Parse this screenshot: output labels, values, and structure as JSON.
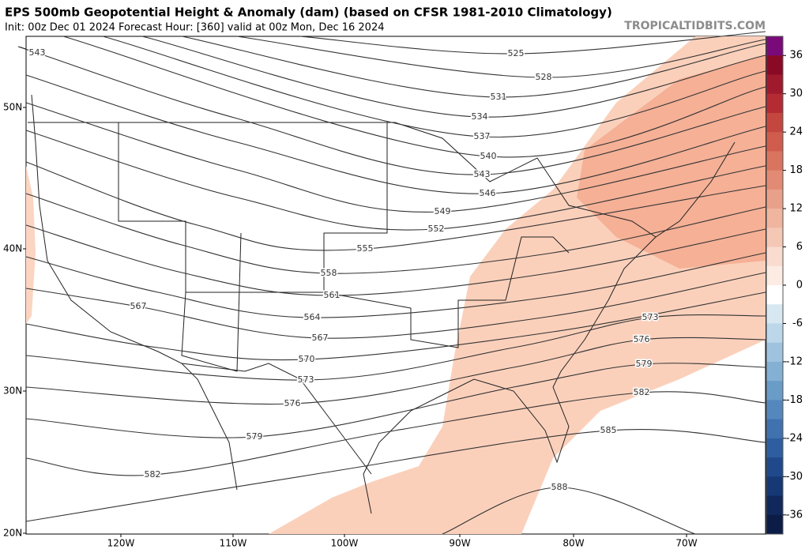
{
  "header": {
    "title": "EPS 500mb Geopotential Height & Anomaly (dam) (based on CFSR 1981-2010 Climatology)",
    "subtitle": "Init: 00z Dec 01 2024   Forecast Hour: [360]   valid at 00z Mon, Dec 16 2024",
    "watermark": "TROPICALTIDBITS.COM"
  },
  "contours": {
    "labels": [
      "543",
      "525",
      "528",
      "531",
      "534",
      "537",
      "540",
      "543",
      "546",
      "549",
      "552",
      "555",
      "558",
      "561",
      "564",
      "567",
      "567",
      "570",
      "573",
      "573",
      "576",
      "576",
      "579",
      "579",
      "582",
      "582",
      "585",
      "588"
    ]
  },
  "latitudes": [
    "50N",
    "40N",
    "30N",
    "20N"
  ],
  "longitudes": [
    "120W",
    "110W",
    "100W",
    "90W",
    "80W",
    "70W"
  ],
  "colorbar": {
    "labels": [
      36,
      30,
      24,
      18,
      12,
      6,
      0,
      -6,
      -12,
      -18,
      -24,
      -30,
      -36
    ]
  }
}
